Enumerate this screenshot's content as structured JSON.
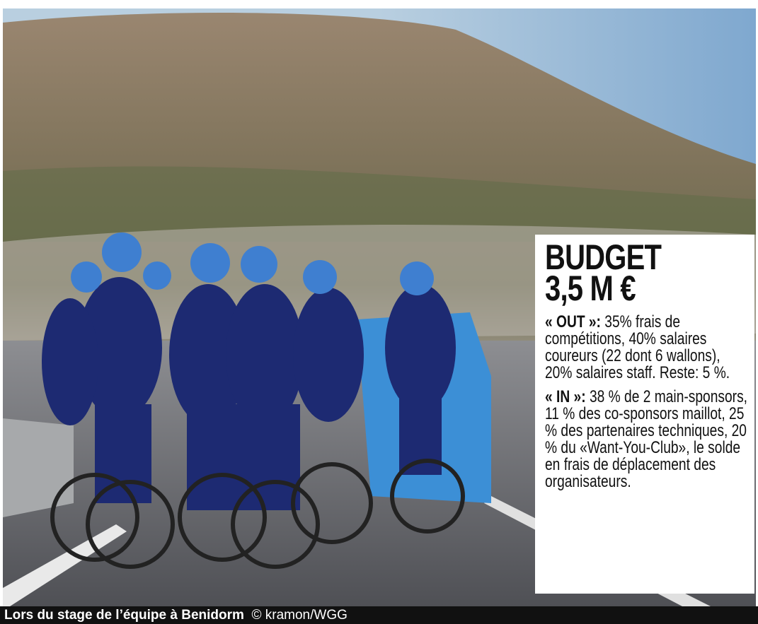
{
  "box": {
    "title": "BUDGET",
    "amount": "3,5 M €",
    "paragraphs": [
      {
        "lead": "« OUT »:",
        "text": " 35% frais de compétitions, 40% salaires coureurs (22 dont 6 wallons), 20% salaires staff. Reste: 5 %."
      },
      {
        "lead": "« IN »:",
        "text": " 38 % de 2 main-sponsors, 11 % des co-sponsors maillot, 25 % des partenaires techniques, 20 % du «Want-You-Club», le solde en frais de déplacement des organisateurs."
      }
    ]
  },
  "caption": {
    "text": "Lors du stage de l’équipe à Benidorm",
    "credit": "© kramon/WGG"
  }
}
